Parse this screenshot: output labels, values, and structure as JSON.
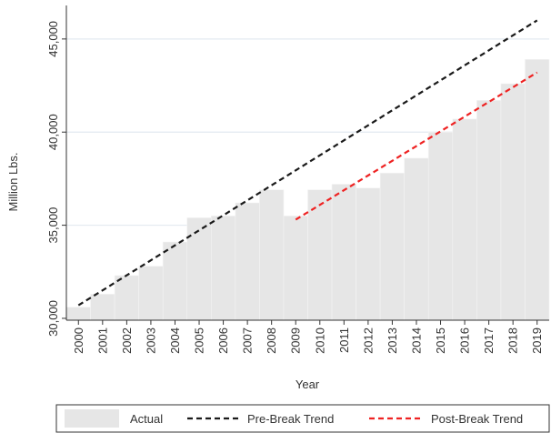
{
  "chart_data": {
    "type": "bar",
    "title": "",
    "xlabel": "Year",
    "ylabel": "Million Lbs.",
    "categories": [
      "2000",
      "2001",
      "2002",
      "2003",
      "2004",
      "2005",
      "2006",
      "2007",
      "2008",
      "2009",
      "2010",
      "2011",
      "2012",
      "2013",
      "2014",
      "2015",
      "2016",
      "2017",
      "2018",
      "2019"
    ],
    "ylim": [
      29900,
      46800
    ],
    "yticks": [
      30000,
      35000,
      40000,
      45000
    ],
    "ytick_labels": [
      "30,000",
      "35,000",
      "40,000",
      "45,000"
    ],
    "grid": true,
    "legend_position": "bottom",
    "series": [
      {
        "name": "Actual",
        "type": "bar",
        "color": "#e6e6e6",
        "values": [
          30600,
          31300,
          32300,
          32800,
          34100,
          35400,
          35500,
          36200,
          36900,
          35500,
          36900,
          37200,
          37000,
          37800,
          38600,
          40000,
          40700,
          41700,
          42600,
          43900
        ]
      },
      {
        "name": "Pre-Break Trend",
        "type": "line",
        "style": "dashed",
        "color": "#1a1a1a",
        "x": [
          "2000",
          "2019"
        ],
        "values": [
          30700,
          46000
        ]
      },
      {
        "name": "Post-Break Trend",
        "type": "line",
        "style": "dashed",
        "color": "#ee2222",
        "x": [
          "2009",
          "2019"
        ],
        "values": [
          35300,
          43200
        ]
      }
    ]
  }
}
